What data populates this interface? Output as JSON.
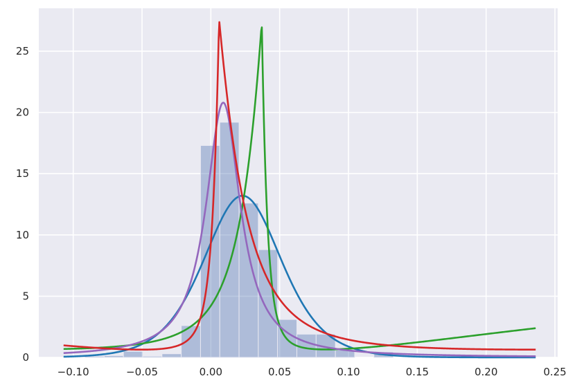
{
  "chart_data": {
    "type": "histogram+line",
    "title": "",
    "xlabel": "",
    "ylabel": "",
    "xlim": [
      -0.125,
      0.252
    ],
    "ylim": [
      0,
      28.5
    ],
    "grid": true,
    "x_ticks": [
      -0.1,
      -0.05,
      0.0,
      0.05,
      0.1,
      0.15,
      0.2,
      0.25
    ],
    "x_tick_labels": [
      "−0.10",
      "−0.05",
      "0.00",
      "0.05",
      "0.10",
      "0.15",
      "0.20",
      "0.25"
    ],
    "y_ticks": [
      0,
      5,
      10,
      15,
      20,
      25
    ],
    "y_tick_labels": [
      "0",
      "5",
      "10",
      "15",
      "20",
      "25"
    ],
    "histogram": {
      "color": "#4c72b0",
      "bins": [
        {
          "x0": -0.0915,
          "x1": -0.0775,
          "value": 0.1
        },
        {
          "x0": -0.0775,
          "x1": -0.0635,
          "value": 0.15
        },
        {
          "x0": -0.0635,
          "x1": -0.0495,
          "value": 0.5
        },
        {
          "x0": -0.0495,
          "x1": -0.0355,
          "value": 0.1
        },
        {
          "x0": -0.0355,
          "x1": -0.0215,
          "value": 0.3
        },
        {
          "x0": -0.0215,
          "x1": -0.0075,
          "value": 2.6
        },
        {
          "x0": -0.0075,
          "x1": 0.0065,
          "value": 17.3
        },
        {
          "x0": 0.0065,
          "x1": 0.0205,
          "value": 19.2
        },
        {
          "x0": 0.0205,
          "x1": 0.0345,
          "value": 12.6
        },
        {
          "x0": 0.0345,
          "x1": 0.0485,
          "value": 8.8
        },
        {
          "x0": 0.0485,
          "x1": 0.0625,
          "value": 3.1
        },
        {
          "x0": 0.0625,
          "x1": 0.0765,
          "value": 1.9
        },
        {
          "x0": 0.0765,
          "x1": 0.0905,
          "value": 1.9
        },
        {
          "x0": 0.0905,
          "x1": 0.1045,
          "value": 0.6
        },
        {
          "x0": 0.1045,
          "x1": 0.1185,
          "value": 0.0
        },
        {
          "x0": 0.1185,
          "x1": 0.1325,
          "value": 0.45
        }
      ]
    },
    "series": [
      {
        "color": "#1f77b4",
        "kind": "logistic",
        "params": {
          "mu": 0.023,
          "s": 0.019
        },
        "peak": 13.2
      },
      {
        "color": "#2ca02c",
        "kind": "asym-laplace",
        "params": {
          "mu": 0.037,
          "b_left": 0.018,
          "b_right": 0.0046,
          "k": 13.4
        },
        "peak": 27.3
      },
      {
        "color": "#9467bd",
        "kind": "cauchy",
        "params": {
          "mu": 0.009,
          "gamma": 0.0153
        },
        "peak": 20.8
      },
      {
        "color": "#d62728",
        "kind": "asym-laplace",
        "params": {
          "mu": 0.006,
          "b_left": 0.0055,
          "b_right": 0.0231,
          "k": 13.6
        },
        "peak": 27.6
      }
    ],
    "curve_x_range": [
      -0.107,
      0.236
    ]
  }
}
